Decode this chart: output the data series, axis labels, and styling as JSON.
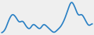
{
  "y": [
    3,
    4,
    7,
    9,
    8,
    6,
    7,
    5,
    4,
    6,
    5,
    4,
    6,
    5,
    4,
    3,
    4,
    5,
    7,
    10,
    13,
    11,
    8,
    9,
    7,
    5,
    6
  ],
  "line_color": "#2980c4",
  "linewidth": 1.2,
  "background_color": "#efefef"
}
